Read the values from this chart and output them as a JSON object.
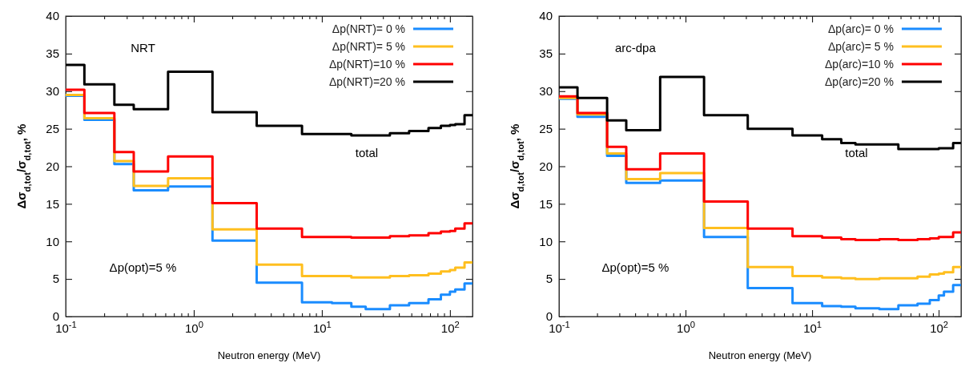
{
  "chart_data": [
    {
      "type": "step",
      "xlabel": "Neutron energy (MeV)",
      "ylabel": "Δσ$_{d,tot}$/σ$_{d,tot}$, %",
      "annotations": [
        "NRT",
        "total",
        "Δp(opt)=5 %"
      ],
      "log": "x",
      "legend": "top right",
      "grid": false,
      "line_style": "solid",
      "marker": "none",
      "x": [
        0.1,
        0.14,
        0.24,
        0.34,
        0.63,
        1.4,
        3.1,
        7,
        12,
        17,
        22,
        34,
        48,
        68,
        85,
        100,
        110,
        130,
        150
      ],
      "xlim": [
        0.1,
        150
      ],
      "xticks": [
        {
          "value": 0.1,
          "label": "10$^{-1}$"
        },
        {
          "value": 0.2,
          "label": null
        },
        {
          "value": 0.3,
          "label": null
        },
        {
          "value": 0.4,
          "label": null
        },
        {
          "value": 0.5,
          "label": null
        },
        {
          "value": 0.6,
          "label": null
        },
        {
          "value": 0.7,
          "label": null
        },
        {
          "value": 0.8,
          "label": null
        },
        {
          "value": 0.9,
          "label": null
        },
        {
          "value": 1,
          "label": "10$^{0}$"
        },
        {
          "value": 2,
          "label": null
        },
        {
          "value": 3,
          "label": null
        },
        {
          "value": 4,
          "label": null
        },
        {
          "value": 5,
          "label": null
        },
        {
          "value": 6,
          "label": null
        },
        {
          "value": 7,
          "label": null
        },
        {
          "value": 8,
          "label": null
        },
        {
          "value": 9,
          "label": null
        },
        {
          "value": 10,
          "label": "10$^{1}$"
        },
        {
          "value": 20,
          "label": null
        },
        {
          "value": 30,
          "label": null
        },
        {
          "value": 40,
          "label": null
        },
        {
          "value": 50,
          "label": null
        },
        {
          "value": 60,
          "label": null
        },
        {
          "value": 70,
          "label": null
        },
        {
          "value": 80,
          "label": null
        },
        {
          "value": 90,
          "label": null
        },
        {
          "value": 100,
          "label": "10$^{2}$"
        }
      ],
      "ylim": [
        0,
        40
      ],
      "yticks": [
        0,
        5,
        10,
        15,
        20,
        25,
        30,
        35,
        40
      ],
      "series": [
        {
          "name": "Δp(NRT)= 0 %",
          "color": "#1a8cff",
          "values": [
            29.4,
            26.2,
            20.3,
            16.8,
            17.3,
            10.1,
            4.5,
            1.9,
            1.8,
            1.3,
            1.0,
            1.5,
            1.8,
            2.3,
            2.9,
            3.3,
            3.6,
            4.4,
            4.4
          ]
        },
        {
          "name": "Δp(NRT)= 5 %",
          "color": "#ffbf1f",
          "values": [
            29.5,
            26.4,
            20.7,
            17.4,
            18.4,
            11.6,
            6.9,
            5.4,
            5.4,
            5.2,
            5.2,
            5.4,
            5.5,
            5.7,
            6.0,
            6.2,
            6.5,
            7.2,
            7.2
          ]
        },
        {
          "name": "Δp(NRT)=10 %",
          "color": "#ff0000",
          "values": [
            30.2,
            27.1,
            21.9,
            19.3,
            21.3,
            15.1,
            11.7,
            10.6,
            10.6,
            10.5,
            10.5,
            10.7,
            10.8,
            11.1,
            11.3,
            11.4,
            11.7,
            12.4,
            12.4
          ]
        },
        {
          "name": "Δp(NRT)=20 %",
          "color": "#000000",
          "values": [
            33.5,
            30.9,
            28.2,
            27.6,
            32.6,
            27.2,
            25.4,
            24.3,
            24.3,
            24.1,
            24.1,
            24.4,
            24.7,
            25.1,
            25.4,
            25.5,
            25.6,
            26.8,
            26.8
          ]
        }
      ]
    },
    {
      "type": "step",
      "xlabel": "Neutron energy (MeV)",
      "ylabel": "Δσ$_{d,tot}$/σ$_{d,tot}$, %",
      "annotations": [
        "arc-dpa",
        "total",
        "Δp(opt)=5 %"
      ],
      "log": "x",
      "legend": "top right",
      "grid": false,
      "line_style": "solid",
      "marker": "none",
      "x": [
        0.1,
        0.14,
        0.24,
        0.34,
        0.63,
        1.4,
        3.1,
        7,
        12,
        17,
        22,
        34,
        48,
        68,
        85,
        100,
        110,
        130,
        150
      ],
      "xlim": [
        0.1,
        150
      ],
      "xticks": [
        {
          "value": 0.1,
          "label": "10$^{-1}$"
        },
        {
          "value": 0.2,
          "label": null
        },
        {
          "value": 0.3,
          "label": null
        },
        {
          "value": 0.4,
          "label": null
        },
        {
          "value": 0.5,
          "label": null
        },
        {
          "value": 0.6,
          "label": null
        },
        {
          "value": 0.7,
          "label": null
        },
        {
          "value": 0.8,
          "label": null
        },
        {
          "value": 0.9,
          "label": null
        },
        {
          "value": 1,
          "label": "10$^{0}$"
        },
        {
          "value": 2,
          "label": null
        },
        {
          "value": 3,
          "label": null
        },
        {
          "value": 4,
          "label": null
        },
        {
          "value": 5,
          "label": null
        },
        {
          "value": 6,
          "label": null
        },
        {
          "value": 7,
          "label": null
        },
        {
          "value": 8,
          "label": null
        },
        {
          "value": 9,
          "label": null
        },
        {
          "value": 10,
          "label": "10$^{1}$"
        },
        {
          "value": 20,
          "label": null
        },
        {
          "value": 30,
          "label": null
        },
        {
          "value": 40,
          "label": null
        },
        {
          "value": 50,
          "label": null
        },
        {
          "value": 60,
          "label": null
        },
        {
          "value": 70,
          "label": null
        },
        {
          "value": 80,
          "label": null
        },
        {
          "value": 90,
          "label": null
        },
        {
          "value": 100,
          "label": "10$^{2}$"
        }
      ],
      "ylim": [
        0,
        40
      ],
      "yticks": [
        0,
        5,
        10,
        15,
        20,
        25,
        30,
        35,
        40
      ],
      "series": [
        {
          "name": "Δp(arc)= 0 %",
          "color": "#1a8cff",
          "values": [
            29.0,
            26.6,
            21.4,
            17.8,
            18.1,
            10.6,
            3.8,
            1.8,
            1.4,
            1.3,
            1.1,
            1.0,
            1.5,
            1.7,
            2.2,
            2.8,
            3.3,
            4.2,
            4.2
          ]
        },
        {
          "name": "Δp(arc)= 5 %",
          "color": "#ffbf1f",
          "values": [
            29.1,
            26.9,
            21.7,
            18.3,
            19.1,
            11.8,
            6.6,
            5.4,
            5.2,
            5.1,
            5.0,
            5.1,
            5.1,
            5.3,
            5.6,
            5.7,
            5.9,
            6.6,
            6.6
          ]
        },
        {
          "name": "Δp(arc)=10 %",
          "color": "#ff0000",
          "values": [
            29.3,
            27.1,
            22.6,
            19.6,
            21.7,
            15.3,
            11.7,
            10.7,
            10.5,
            10.3,
            10.2,
            10.3,
            10.2,
            10.3,
            10.4,
            10.6,
            10.6,
            11.2,
            11.2
          ]
        },
        {
          "name": "Δp(arc)=20 %",
          "color": "#000000",
          "values": [
            30.5,
            29.1,
            26.1,
            24.8,
            31.9,
            26.8,
            25.0,
            24.1,
            23.6,
            23.1,
            22.9,
            22.9,
            22.3,
            22.3,
            22.3,
            22.4,
            22.4,
            23.1,
            23.1
          ]
        }
      ]
    }
  ]
}
